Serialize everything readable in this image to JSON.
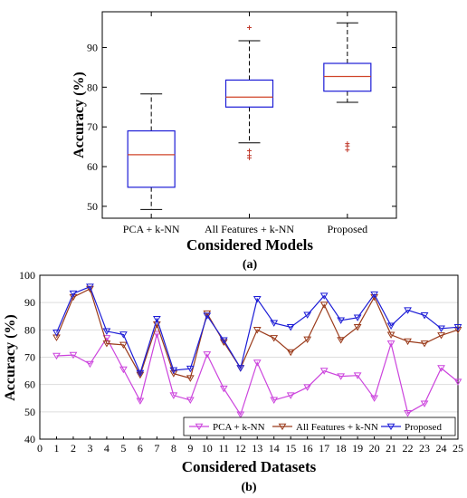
{
  "chart_data": [
    {
      "type": "box",
      "panel_label": "(a)",
      "xlabel": "Considered Models",
      "ylabel": "Accuracy (%)",
      "ylim": [
        47,
        99
      ],
      "yticks": [
        50,
        60,
        70,
        80,
        90
      ],
      "categories": [
        "PCA + k-NN",
        "All Features + k-NN",
        "Proposed"
      ],
      "boxes": [
        {
          "whisker_low": 49.2,
          "q1": 54.8,
          "median": 63.0,
          "q3": 69.0,
          "whisker_high": 78.3,
          "outliers": []
        },
        {
          "whisker_low": 66.0,
          "q1": 75.0,
          "median": 77.5,
          "q3": 81.8,
          "whisker_high": 91.7,
          "outliers": [
            95.0,
            64.0,
            62.8,
            62.2
          ]
        },
        {
          "whisker_low": 76.2,
          "q1": 79.0,
          "median": 82.7,
          "q3": 86.0,
          "whisker_high": 96.2,
          "outliers": [
            65.8,
            65.2,
            64.2
          ]
        }
      ],
      "colors": {
        "box": "#1c1cd6",
        "median": "#d0452a",
        "outlier": "#c0392b",
        "whisker": "#000000"
      }
    },
    {
      "type": "line",
      "panel_label": "(b)",
      "xlabel": "Considered Datasets",
      "ylabel": "Accuracy (%)",
      "xlim": [
        0,
        25
      ],
      "ylim": [
        40,
        100
      ],
      "xticks": [
        0,
        1,
        2,
        3,
        4,
        5,
        6,
        7,
        8,
        9,
        10,
        11,
        12,
        13,
        14,
        15,
        16,
        17,
        18,
        19,
        20,
        21,
        22,
        23,
        24,
        25
      ],
      "yticks": [
        40,
        50,
        60,
        70,
        80,
        90,
        100
      ],
      "legend_position": "bottom-right",
      "x": [
        1,
        2,
        3,
        4,
        5,
        6,
        7,
        8,
        9,
        10,
        11,
        12,
        13,
        14,
        15,
        16,
        17,
        18,
        19,
        20,
        21,
        22,
        23,
        24,
        25
      ],
      "series": [
        {
          "name": "PCA + k-NN",
          "color": "#cc44dd",
          "values": [
            70.5,
            70.8,
            67.5,
            77.0,
            65.5,
            54.0,
            78.5,
            56.0,
            54.3,
            71.0,
            58.5,
            49.0,
            68.0,
            54.3,
            56.0,
            59.0,
            65.0,
            63.0,
            63.3,
            55.0,
            75.0,
            49.5,
            53.0,
            66.0,
            61.0
          ]
        },
        {
          "name": "All Features + k-NN",
          "color": "#9a3a1a",
          "values": [
            77.2,
            92.0,
            95.0,
            75.0,
            74.5,
            63.5,
            82.0,
            64.0,
            62.3,
            86.0,
            75.5,
            66.0,
            80.0,
            77.0,
            71.8,
            76.5,
            89.2,
            76.3,
            81.0,
            92.0,
            78.2,
            75.8,
            75.0,
            78.0,
            80.0
          ]
        },
        {
          "name": "Proposed",
          "color": "#1c1cd6",
          "values": [
            79.0,
            93.3,
            95.8,
            79.5,
            78.3,
            64.2,
            84.0,
            65.2,
            65.8,
            85.2,
            76.2,
            66.0,
            91.3,
            82.5,
            81.0,
            85.5,
            92.5,
            83.5,
            84.5,
            93.0,
            81.5,
            87.2,
            85.3,
            80.5,
            81.0
          ]
        }
      ]
    }
  ]
}
